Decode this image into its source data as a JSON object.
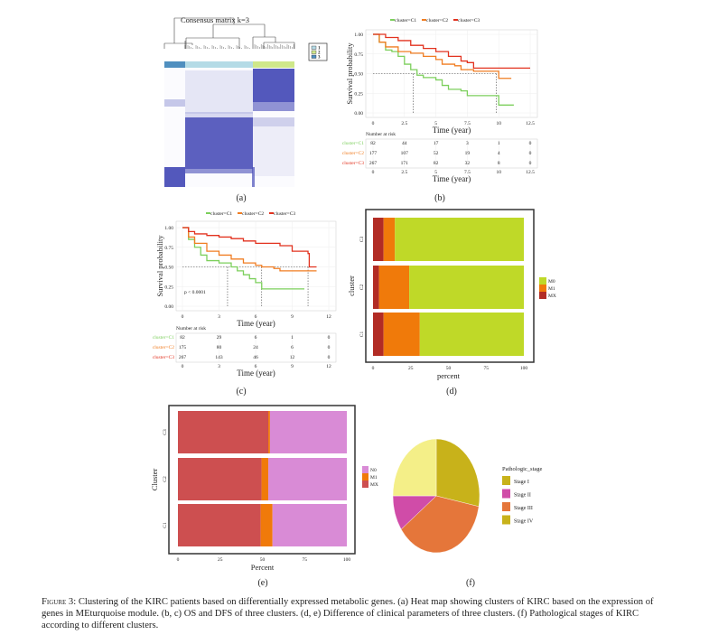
{
  "panels": {
    "a": "(a)",
    "b": "(b)",
    "c": "(c)",
    "d": "(d)",
    "e": "(e)",
    "f": "(f)"
  },
  "caption": {
    "label": "Figure 3:",
    "text": "Clustering of the KIRC patients based on differentially expressed metabolic genes. (a) Heat map showing clusters of KIRC based on the expression of genes in MEturquoise module. (b, c) OS and DFS of three clusters. (d, e) Difference of clinical parameters of three clusters. (f) Pathological stages of KIRC according to different clusters."
  },
  "chart_data": [
    {
      "panel": "a",
      "type": "heatmap",
      "title": "Consensus matrix k=3",
      "legend": [
        {
          "label": "1",
          "color": "#b4dbe6"
        },
        {
          "label": "2",
          "color": "#cfe88a"
        },
        {
          "label": "3",
          "color": "#4f8fbf"
        }
      ],
      "column_cluster_order": [
        "3",
        "1",
        "2"
      ],
      "cell_color": "#4a4fb8"
    },
    {
      "panel": "b",
      "type": "line",
      "xlabel": "Time (year)",
      "ylabel": "Survival probability",
      "xlim": [
        0,
        12.5
      ],
      "ylim": [
        0,
        1
      ],
      "xticks": [
        "0",
        "2.5",
        "5",
        "7.5",
        "10",
        "12.5"
      ],
      "xtick_values": [
        0,
        2.5,
        5,
        7.5,
        10,
        12.5
      ],
      "yticks": [
        "0.00",
        "0.25",
        "0.50",
        "0.75",
        "1.00"
      ],
      "grid": true,
      "legend_position": "top",
      "median_times": [
        3.2,
        9.8
      ],
      "series": [
        {
          "name": "cluster=C1",
          "color": "#7ccf5c",
          "x": [
            0,
            0.5,
            1,
            1.5,
            2,
            2.5,
            3,
            3.5,
            4,
            5,
            5.5,
            6,
            7,
            7.5,
            9.9,
            10,
            11.2
          ],
          "y": [
            1,
            0.9,
            0.8,
            0.78,
            0.72,
            0.62,
            0.55,
            0.48,
            0.45,
            0.42,
            0.35,
            0.3,
            0.28,
            0.22,
            0.22,
            0.1,
            0.1
          ]
        },
        {
          "name": "cluster=C2",
          "color": "#f07d22",
          "x": [
            0,
            0.5,
            1,
            2,
            3,
            4,
            5,
            5.5,
            6.5,
            7,
            8,
            9.8,
            10,
            11
          ],
          "y": [
            1,
            0.9,
            0.84,
            0.78,
            0.76,
            0.72,
            0.68,
            0.62,
            0.6,
            0.55,
            0.53,
            0.53,
            0.44,
            0.44
          ]
        },
        {
          "name": "cluster=C3",
          "color": "#e2321f",
          "x": [
            0,
            1,
            2,
            3,
            4,
            5,
            6,
            7,
            7.5,
            8,
            12.5
          ],
          "y": [
            1,
            0.96,
            0.92,
            0.86,
            0.82,
            0.78,
            0.72,
            0.66,
            0.64,
            0.57,
            0.57
          ]
        }
      ],
      "risk_table": {
        "title": "Number at risk",
        "rows": [
          {
            "label": "cluster=C1",
            "values": [
              "82",
              "44",
              "17",
              "3",
              "1",
              "0"
            ]
          },
          {
            "label": "cluster=C2",
            "values": [
              "177",
              "107",
              "52",
              "19",
              "4",
              "0"
            ]
          },
          {
            "label": "cluster=C3",
            "values": [
              "267",
              "171",
              "82",
              "32",
              "8",
              "0"
            ]
          }
        ],
        "xlabel": "Time (year)"
      }
    },
    {
      "panel": "c",
      "type": "line",
      "xlabel": "Time (year)",
      "ylabel": "Survival probability",
      "xlim": [
        0,
        12
      ],
      "ylim": [
        0,
        1
      ],
      "xticks": [
        "0",
        "3",
        "6",
        "9",
        "12"
      ],
      "xtick_values": [
        0,
        3,
        6,
        9,
        12
      ],
      "yticks": [
        "0.00",
        "0.25",
        "0.50",
        "0.75",
        "1.00"
      ],
      "grid": true,
      "legend_position": "top",
      "annotation": "p < 0.0001",
      "median_times": [
        3.7,
        6.5,
        10.3
      ],
      "series": [
        {
          "name": "cluster=C1",
          "color": "#7ccf5c",
          "x": [
            0,
            0.5,
            1,
            1.5,
            2,
            3,
            4,
            4.5,
            5,
            5.5,
            6,
            6.5,
            10
          ],
          "y": [
            1,
            0.85,
            0.75,
            0.65,
            0.58,
            0.55,
            0.5,
            0.45,
            0.4,
            0.35,
            0.3,
            0.22,
            0.22
          ]
        },
        {
          "name": "cluster=C2",
          "color": "#f07d22",
          "x": [
            0,
            0.5,
            1,
            2,
            3,
            4,
            5,
            6,
            6.5,
            7.5,
            8,
            11
          ],
          "y": [
            1,
            0.88,
            0.8,
            0.7,
            0.65,
            0.6,
            0.55,
            0.52,
            0.5,
            0.48,
            0.45,
            0.45
          ]
        },
        {
          "name": "cluster=C3",
          "color": "#e2321f",
          "x": [
            0,
            0.5,
            1,
            2,
            3,
            4,
            5,
            6,
            8,
            9,
            10.3,
            10.4,
            11
          ],
          "y": [
            1,
            0.95,
            0.92,
            0.9,
            0.88,
            0.86,
            0.83,
            0.8,
            0.77,
            0.7,
            0.67,
            0.5,
            0.5
          ]
        }
      ],
      "risk_table": {
        "title": "Number at risk",
        "rows": [
          {
            "label": "cluster=C1",
            "values": [
              "82",
              "29",
              "6",
              "1",
              "0"
            ]
          },
          {
            "label": "cluster=C2",
            "values": [
              "175",
              "80",
              "24",
              "6",
              "0"
            ]
          },
          {
            "label": "cluster=C3",
            "values": [
              "267",
              "143",
              "46",
              "12",
              "0"
            ]
          }
        ],
        "xlabel": "Time (year)"
      }
    },
    {
      "panel": "d",
      "type": "bar",
      "orientation": "horizontal-stacked",
      "xlabel": "percent",
      "ylabel": "cluster",
      "xlim": [
        0,
        100
      ],
      "xticks": [
        "0",
        "25",
        "50",
        "75",
        "100"
      ],
      "categories": [
        "C3",
        "C2",
        "C1"
      ],
      "legend_position": "right",
      "legend": [
        "M0",
        "M1",
        "MX"
      ],
      "series": [
        {
          "name": "MX",
          "color": "#b22c25",
          "values": [
            7,
            4,
            7
          ]
        },
        {
          "name": "M1",
          "color": "#f07a0a",
          "values": [
            7.5,
            20,
            24
          ]
        },
        {
          "name": "M0",
          "color": "#bfd928",
          "values": [
            85.5,
            76,
            69
          ]
        }
      ]
    },
    {
      "panel": "e",
      "type": "bar",
      "orientation": "horizontal-stacked",
      "xlabel": "Percent",
      "ylabel": "Cluster",
      "xlim": [
        0,
        100
      ],
      "xticks": [
        "0",
        "25",
        "50",
        "75",
        "100"
      ],
      "categories": [
        "C3",
        "C2",
        "C1"
      ],
      "legend_position": "right",
      "legend": [
        "N0",
        "M1",
        "MX"
      ],
      "series": [
        {
          "name": "MX",
          "color": "#cd4f50",
          "values": [
            53.5,
            49.5,
            49
          ]
        },
        {
          "name": "M1",
          "color": "#f07a0a",
          "values": [
            1,
            4,
            7
          ]
        },
        {
          "name": "N0",
          "color": "#d98bd6",
          "values": [
            45.5,
            46.5,
            44
          ]
        }
      ]
    },
    {
      "panel": "f",
      "type": "pie",
      "legend_title": "Pathologic_stage",
      "legend_position": "right",
      "legend": [
        {
          "label": "Stage I",
          "color": "#c8b21a"
        },
        {
          "label": "Stage II",
          "color": "#d04ca8"
        },
        {
          "label": "Stage III",
          "color": "#e5763a"
        },
        {
          "label": "Stage IV",
          "color": "#c8b21a"
        }
      ],
      "slices_clockwise_from_top": [
        {
          "value": 28,
          "color": "#c8b21a"
        },
        {
          "value": 37,
          "color": "#e5763a"
        },
        {
          "value": 10,
          "color": "#d04ca8"
        },
        {
          "value": 25,
          "color": "#f4ef88"
        }
      ]
    }
  ]
}
